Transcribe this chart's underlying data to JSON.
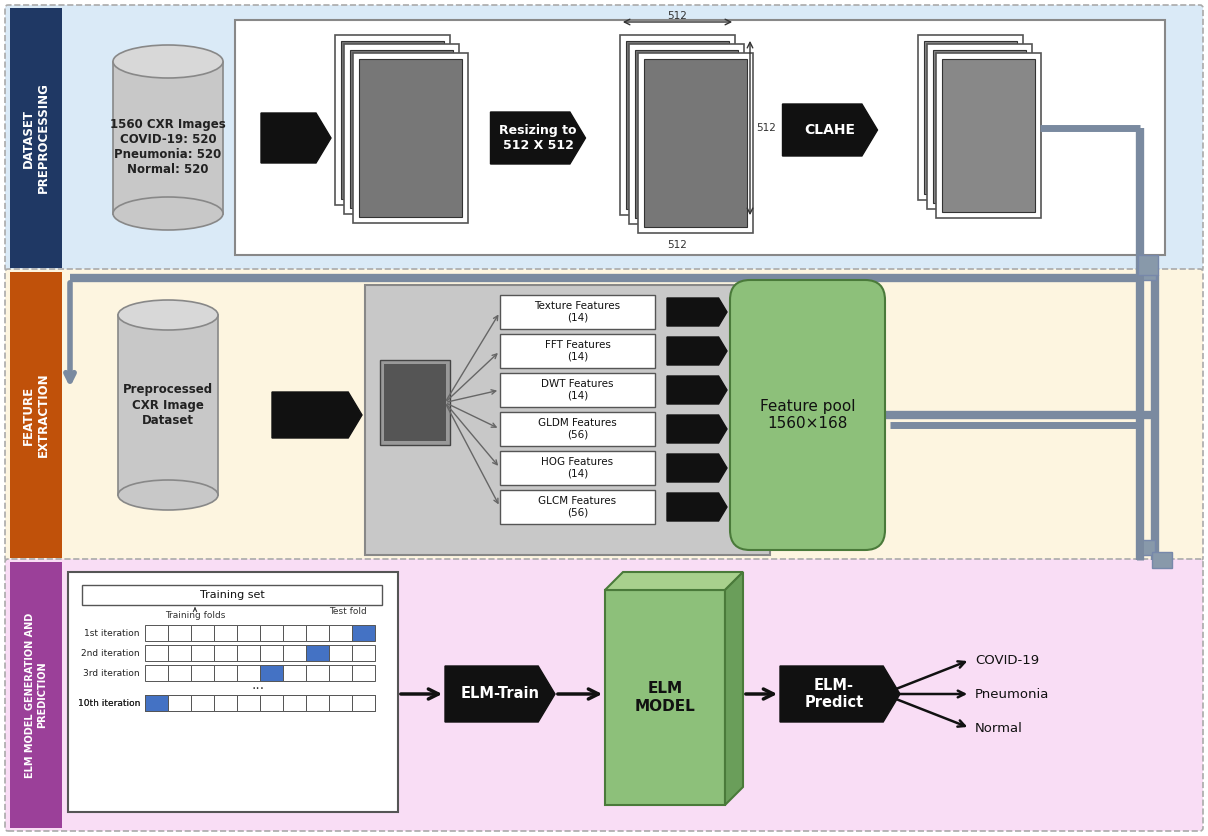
{
  "section1_label": "DATASET\nPREPROCESSING",
  "section2_label": "FEATURE\nEXTRACTION",
  "section3_label": "ELM MODEL GENERATION AND\nPREDICTION",
  "section1_bg": "#daeaf7",
  "section2_bg": "#fdf5e0",
  "section3_bg": "#f9ddf5",
  "label1_bg": "#1f3864",
  "label2_bg": "#c0510a",
  "label3_bg": "#9b4099",
  "dataset_text": "1560 CXR Images\nCOVID-19: 520\nPneumonia: 520\nNormal: 520",
  "preprocessing_text": "Resizing to\n512 X 512",
  "clahe_text": "CLAHE",
  "feature_dataset_text": "Preprocessed\nCXR Image\nDataset",
  "features": [
    "Texture Features\n(14)",
    "FFT Features\n(14)",
    "DWT Features\n(14)",
    "GLDM Features\n(56)",
    "HOG Features\n(14)",
    "GLCM Features\n(56)"
  ],
  "feature_pool_text": "Feature pool\n1560×168",
  "elm_train_text": "ELM-Train",
  "elm_model_text": "ELM\nMODEL",
  "elm_predict_text": "ELM-\nPredict",
  "predictions": [
    "COVID-19",
    "Pneumonia",
    "Normal"
  ],
  "green_face": "#8dc07a",
  "green_top": "#a8d08d",
  "green_right": "#6a9e5a",
  "green_dark": "#4a7a3a",
  "arrow_color": "#111111",
  "pipe_color": "#7a8aa0",
  "cyl_color": "#c8c8c8",
  "cyl_top": "#d8d8d8",
  "cyl_edge": "#888888"
}
